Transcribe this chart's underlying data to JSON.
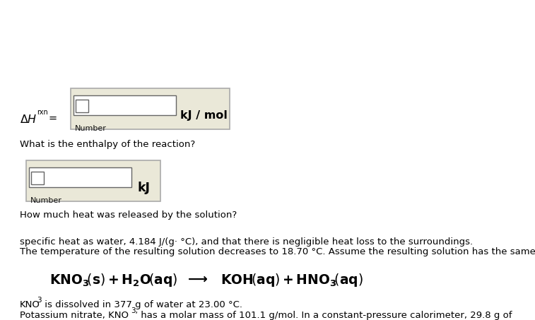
{
  "bg_color": "#ffffff",
  "text_color": "#000000",
  "body_fontsize": 9.5,
  "eq_fontsize": 13,
  "box_fill": "#eae8d8",
  "box_edge": "#aaaaaa",
  "input_fill": "#ffffff",
  "input_edge": "#666666",
  "small_box_fill": "#dcdccc",
  "para1_line1a": "Potassium nitrate, KNO",
  "para1_line1_sub": "3,",
  "para1_line1b": " has a molar mass of 101.1 g/mol. In a constant-pressure calorimeter, 29.8 g of",
  "para1_line2a": "KNO",
  "para1_line2_sub": "3",
  "para1_line2b": " is dissolved in 377 g of water at 23.00 °C.",
  "para2_line1": "The temperature of the resulting solution decreases to 18.70 °C. Assume the resulting solution has the same",
  "para2_line2": "specific heat as water, 4.184 J/(g· °C), and that there is negligible heat loss to the surroundings.",
  "question1": "How much heat was released by the solution?",
  "label_number": "Number",
  "unit_kJ": "kJ",
  "question2": "What is the enthalpy of the reaction?",
  "unit_kJmol": "kJ / mol"
}
